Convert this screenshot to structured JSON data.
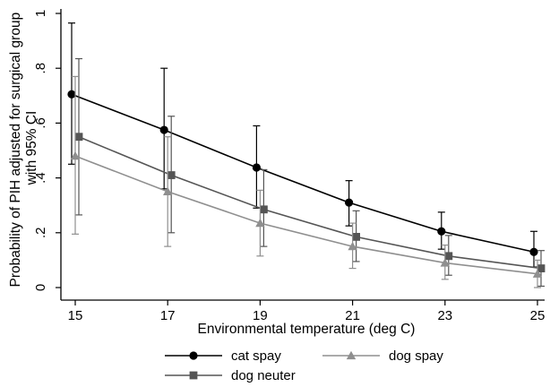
{
  "chart_data": {
    "type": "line",
    "xlabel": "Environmental temperature (deg C)",
    "ylabel_lines": [
      "Probability of PIH adjusted for surgical group",
      "with 95% CI"
    ],
    "x": [
      15,
      17,
      19,
      21,
      23,
      25
    ],
    "x_ticks": [
      "15",
      "17",
      "19",
      "21",
      "23",
      "25"
    ],
    "xlim": [
      15,
      25
    ],
    "y_ticks": [
      {
        "value": 0,
        "label": "0"
      },
      {
        "value": 0.2,
        "label": ".2"
      },
      {
        "value": 0.4,
        "label": ".4"
      },
      {
        "value": 0.6,
        "label": ".6"
      },
      {
        "value": 0.8,
        "label": ".8"
      },
      {
        "value": 1,
        "label": "1"
      }
    ],
    "ylim": [
      0,
      1
    ],
    "grid": false,
    "legend_position": "bottom",
    "series": [
      {
        "name": "cat spay",
        "color": "#000000",
        "marker": "circle",
        "values": [
          0.705,
          0.575,
          0.438,
          0.31,
          0.205,
          0.13
        ],
        "ci_low": [
          0.45,
          0.36,
          0.29,
          0.225,
          0.14,
          0.075
        ],
        "ci_high": [
          0.965,
          0.8,
          0.59,
          0.39,
          0.275,
          0.205
        ]
      },
      {
        "name": "dog neuter",
        "color": "#555555",
        "marker": "square",
        "values": [
          0.55,
          0.41,
          0.285,
          0.185,
          0.115,
          0.07
        ],
        "ci_low": [
          0.265,
          0.2,
          0.15,
          0.095,
          0.045,
          0.005
        ],
        "ci_high": [
          0.835,
          0.625,
          0.43,
          0.28,
          0.19,
          0.135
        ]
      },
      {
        "name": "dog spay",
        "color": "#8f8f8f",
        "marker": "triangle",
        "values": [
          0.48,
          0.35,
          0.235,
          0.15,
          0.09,
          0.05
        ],
        "ci_low": [
          0.195,
          0.15,
          0.115,
          0.07,
          0.03,
          0.0
        ],
        "ci_high": [
          0.77,
          0.55,
          0.355,
          0.235,
          0.155,
          0.1
        ]
      }
    ]
  }
}
